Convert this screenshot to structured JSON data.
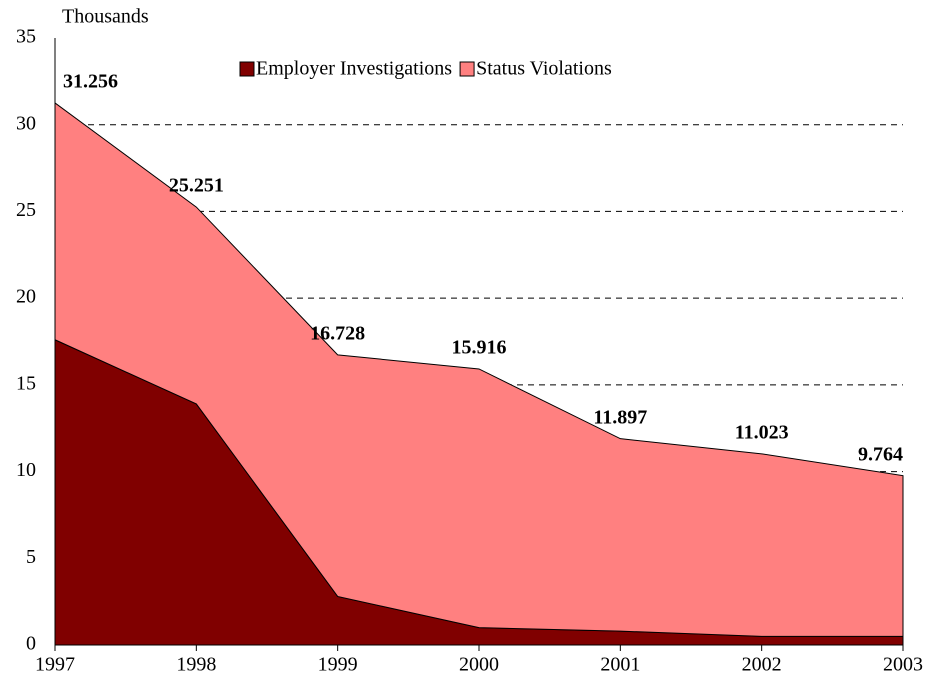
{
  "chart_data": {
    "type": "stacked_area",
    "y_label": "Thousands",
    "categories": [
      "1997",
      "1998",
      "1999",
      "2000",
      "2001",
      "2002",
      "2003"
    ],
    "series": [
      {
        "name": "Employer Investigations",
        "color": "#800000",
        "values": [
          17.6,
          13.9,
          2.8,
          1.0,
          0.8,
          0.5,
          0.5
        ]
      },
      {
        "name": "Status Violations",
        "color": "#ff8080",
        "values": [
          13.656,
          11.351,
          13.928,
          14.916,
          11.097,
          10.523,
          9.264
        ]
      }
    ],
    "totals": [
      31.256,
      25.251,
      16.728,
      15.916,
      11.897,
      11.023,
      9.764
    ],
    "ylim": [
      0,
      35
    ],
    "yticks": [
      0,
      5,
      10,
      15,
      20,
      25,
      30,
      35
    ],
    "grid": true,
    "legend": "top"
  }
}
